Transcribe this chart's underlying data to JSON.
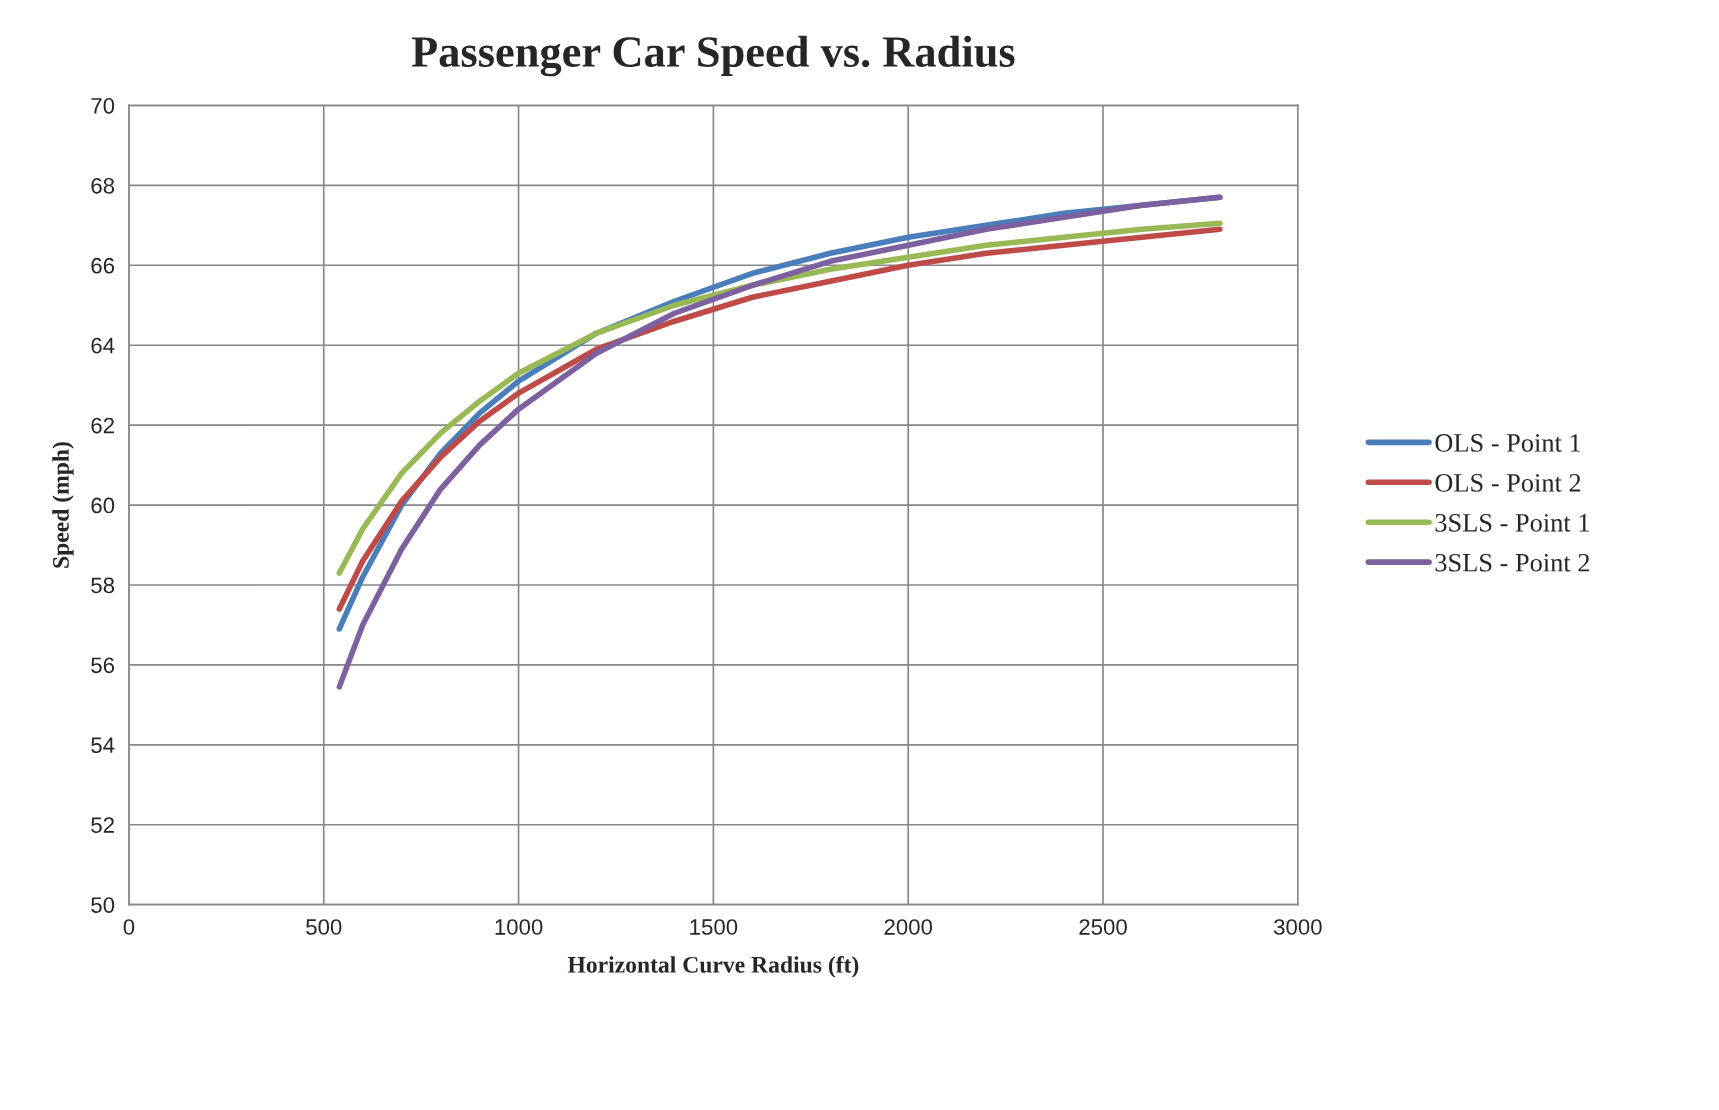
{
  "chart_data": {
    "type": "line",
    "title": "Passenger Car Speed vs. Radius",
    "xlabel": "Horizontal Curve Radius (ft)",
    "ylabel": "Speed (mph)",
    "x": [
      540,
      600,
      700,
      800,
      900,
      1000,
      1200,
      1400,
      1600,
      1800,
      2000,
      2200,
      2400,
      2600,
      2800
    ],
    "series": [
      {
        "name": "OLS - Point 1",
        "color": "#4a7ebb",
        "values": [
          56.9,
          58.2,
          60.0,
          61.3,
          62.3,
          63.1,
          64.3,
          65.1,
          65.8,
          66.3,
          66.7,
          67.0,
          67.3,
          67.5,
          67.7
        ]
      },
      {
        "name": "OLS - Point 2",
        "color": "#be4b48",
        "values": [
          57.4,
          58.6,
          60.1,
          61.2,
          62.1,
          62.8,
          63.9,
          64.6,
          65.2,
          65.6,
          66.0,
          66.3,
          66.5,
          66.7,
          66.9
        ]
      },
      {
        "name": "3SLS - Point 1",
        "color": "#98b954",
        "values": [
          58.3,
          59.4,
          60.8,
          61.8,
          62.6,
          63.3,
          64.3,
          65.0,
          65.5,
          65.9,
          66.2,
          66.5,
          66.7,
          66.9,
          67.05
        ]
      },
      {
        "name": "3SLS - Point 2",
        "color": "#7d60a0",
        "values": [
          55.45,
          57.0,
          58.9,
          60.4,
          61.5,
          62.4,
          63.8,
          64.8,
          65.5,
          66.1,
          66.5,
          66.9,
          67.2,
          67.5,
          67.7
        ]
      }
    ],
    "xlim": [
      0,
      3000
    ],
    "xticks": [
      0,
      500,
      1000,
      1500,
      2000,
      2500,
      3000
    ],
    "ylim": [
      50,
      70
    ],
    "yticks": [
      50,
      52,
      54,
      56,
      58,
      60,
      62,
      64,
      66,
      68,
      70
    ],
    "grid": true,
    "legend": "right",
    "marker": "none",
    "line_style": "solid"
  }
}
